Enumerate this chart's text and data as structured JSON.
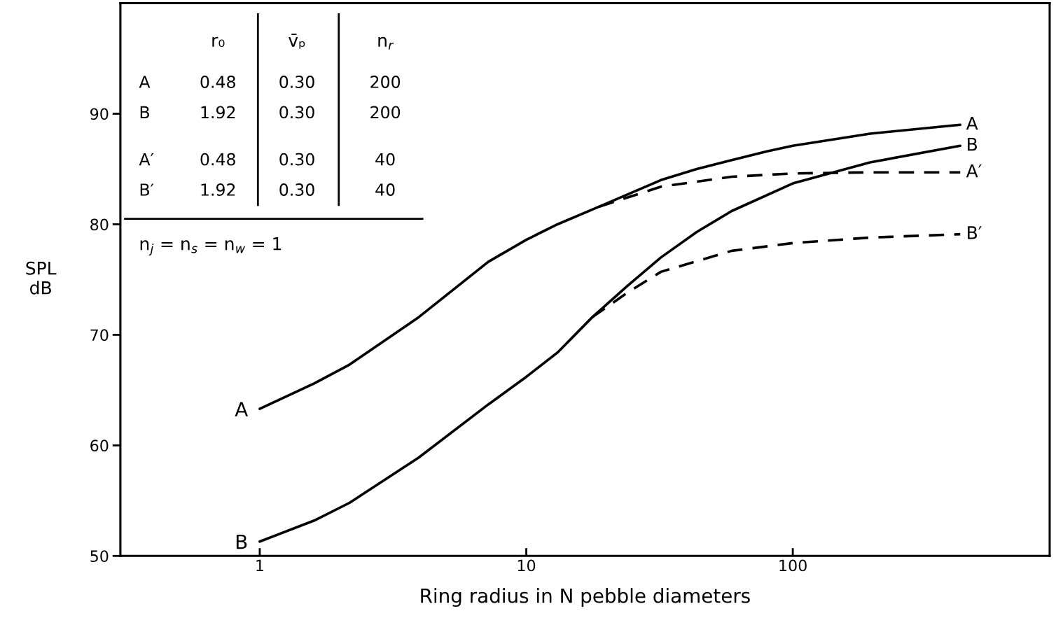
{
  "chart_data": {
    "type": "line",
    "xlabel": "Ring radius in N pebble diameters",
    "ylabel": "SPL\ndB",
    "log": "x",
    "xlim": [
      0.3,
      920
    ],
    "xticks": [
      1,
      10,
      100
    ],
    "ylim": [
      50,
      100
    ],
    "yticks": [
      50,
      60,
      70,
      80,
      90
    ],
    "grid": false,
    "legend": false,
    "marker": "none",
    "series": [
      {
        "name": "A",
        "color": "#000000",
        "line_style": "solid",
        "x": [
          1,
          1.6,
          2.17,
          3.95,
          7.2,
          10,
          13.1,
          18.8,
          32,
          43.6,
          59,
          80,
          100,
          195,
          425
        ],
        "values": [
          63.3,
          65.6,
          67.3,
          71.6,
          76.6,
          78.6,
          80.0,
          81.6,
          84.0,
          85.0,
          85.8,
          86.6,
          87.1,
          88.2,
          89.0
        ]
      },
      {
        "name": "B",
        "color": "#000000",
        "line_style": "solid",
        "x": [
          1,
          1.6,
          2.17,
          3.95,
          7.2,
          10,
          13.1,
          17.7,
          23.9,
          32,
          43.6,
          59,
          100,
          195,
          425
        ],
        "values": [
          51.3,
          53.2,
          54.8,
          58.9,
          63.7,
          66.2,
          68.4,
          71.6,
          74.4,
          77.0,
          79.3,
          81.2,
          83.7,
          85.6,
          87.1
        ]
      },
      {
        "name": "A′",
        "color": "#000000",
        "line_style": "dashed",
        "x": [
          18.8,
          32,
          59,
          100,
          195,
          425
        ],
        "values": [
          81.6,
          83.4,
          84.3,
          84.6,
          84.7,
          84.7
        ]
      },
      {
        "name": "B′",
        "color": "#000000",
        "line_style": "dashed",
        "x": [
          17.7,
          23.9,
          32,
          59,
          100,
          195,
          425
        ],
        "values": [
          71.6,
          73.8,
          75.7,
          77.6,
          78.3,
          78.8,
          79.1
        ]
      }
    ],
    "annotations": [
      "r₀",
      "v̄ₚ",
      "n$_{r}$",
      "A",
      "0.48",
      "0.30",
      "200",
      "B",
      "1.92",
      "0.30",
      "200",
      "A′",
      "0.48",
      "0.30",
      "40",
      "B′",
      "1.92",
      "0.30",
      "40",
      "n$_{j}$ = n$_{s}$ = n$_{w}$ = 1",
      {
        "text": "A",
        "x": 1,
        "y": 63.3
      },
      {
        "text": "B",
        "x": 1,
        "y": 51.3
      }
    ]
  }
}
